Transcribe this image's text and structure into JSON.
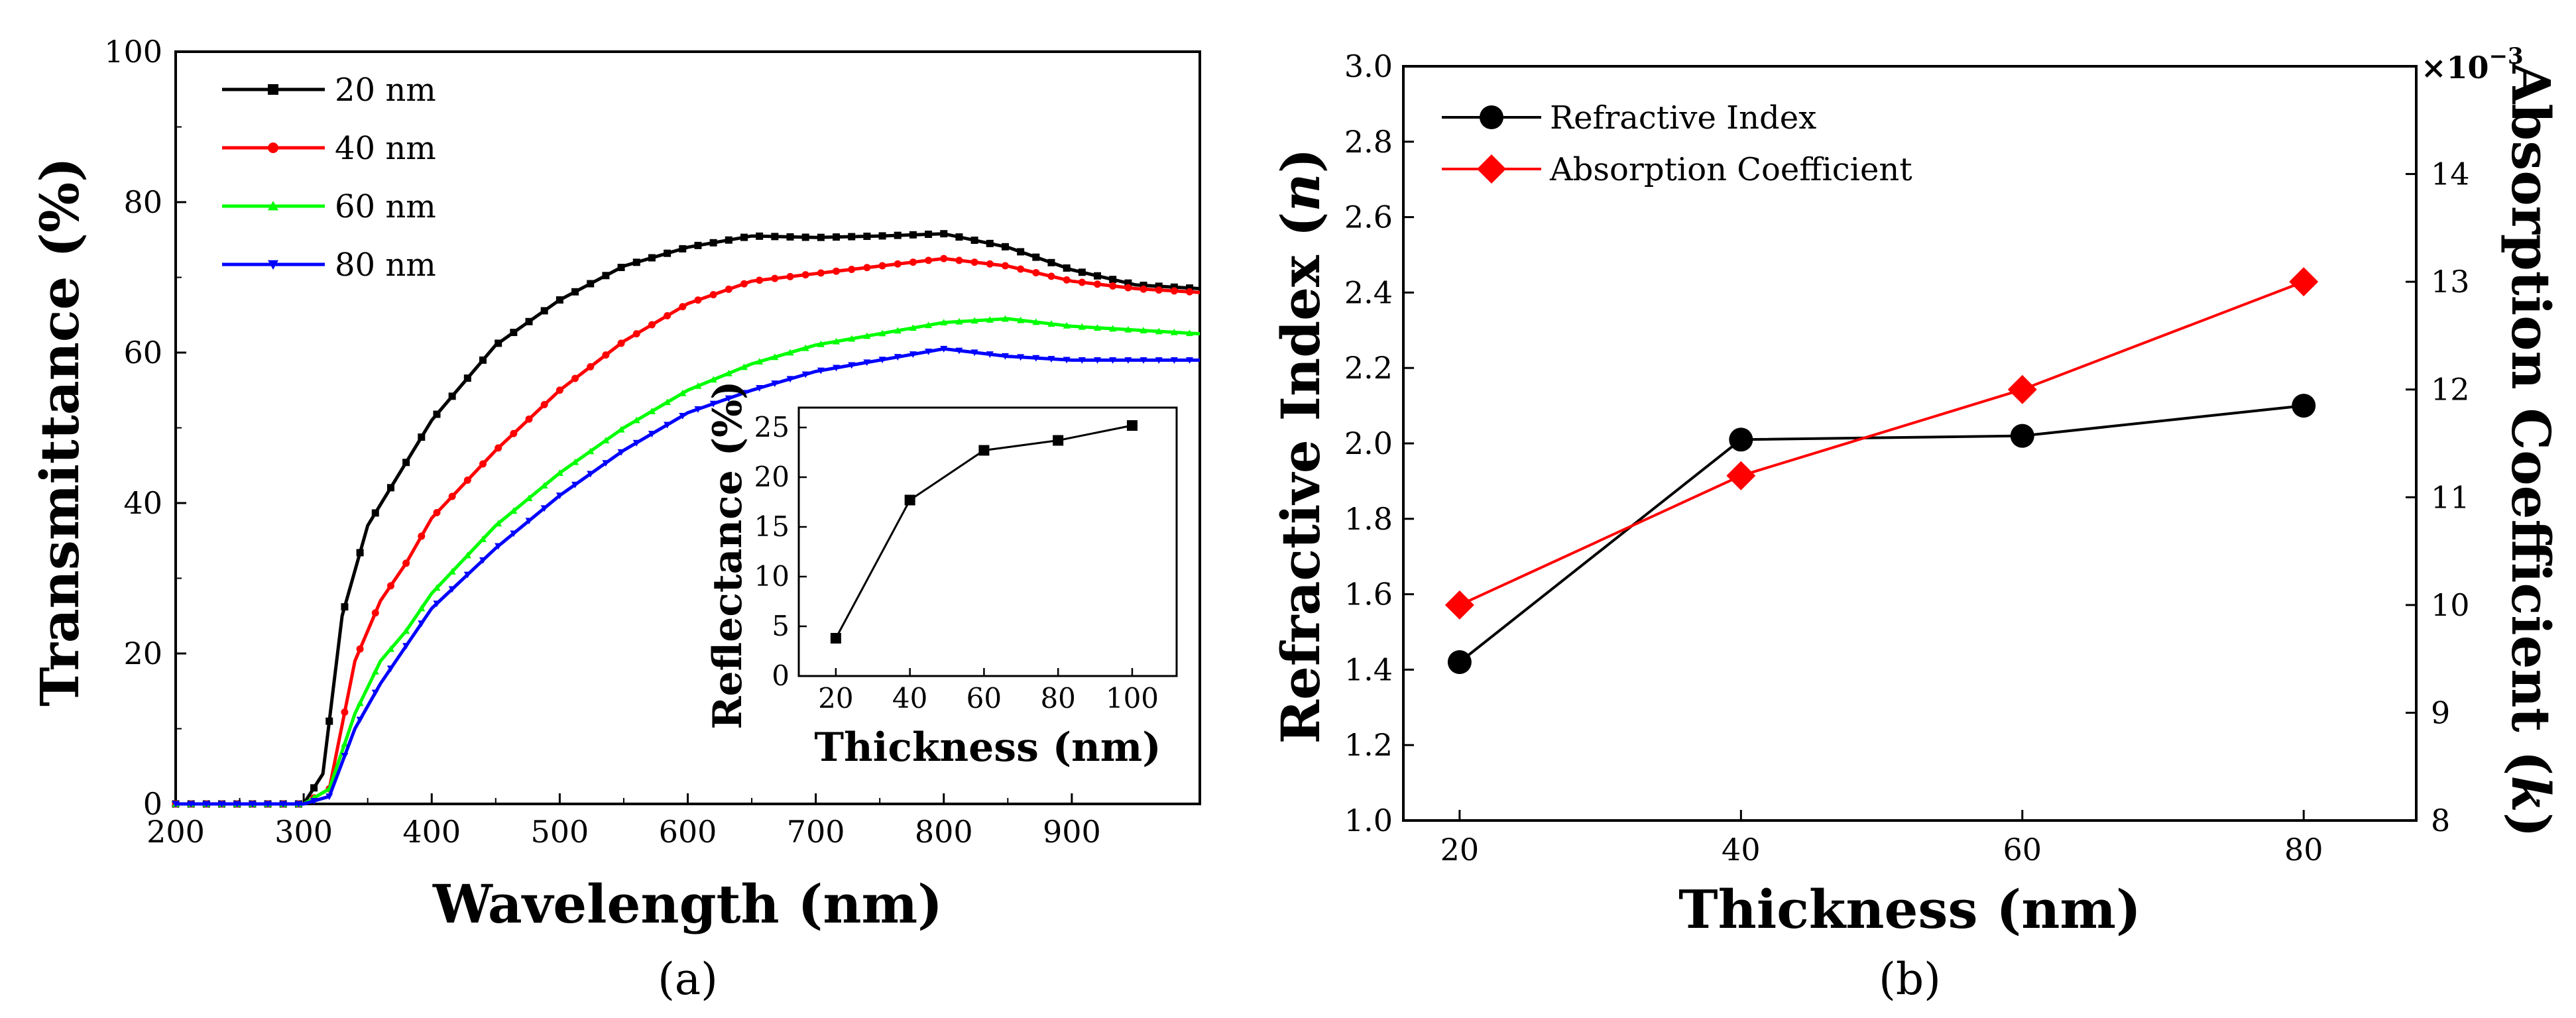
{
  "chart_data": [
    {
      "id": "a",
      "type": "line",
      "panel_label": "(a)",
      "xlabel": "Wavelength (nm)",
      "ylabel": "Transmittance (%)",
      "xlim": [
        200,
        1000
      ],
      "ylim": [
        0,
        100
      ],
      "xticks": [
        200,
        300,
        400,
        500,
        600,
        700,
        800,
        900
      ],
      "yticks": [
        0,
        20,
        40,
        60,
        80,
        100
      ],
      "legend_position": "top-left",
      "series": [
        {
          "name": "20 nm",
          "color": "#000000",
          "marker": "square",
          "x": [
            200,
            300,
            315,
            330,
            350,
            375,
            400,
            450,
            500,
            550,
            600,
            650,
            700,
            750,
            800,
            850,
            900,
            950,
            1000
          ],
          "y": [
            0,
            0,
            4,
            25,
            37,
            44,
            51,
            61,
            67,
            71.5,
            74,
            75.5,
            75.3,
            75.5,
            75.8,
            74,
            71,
            69,
            68.5
          ]
        },
        {
          "name": "40 nm",
          "color": "#ff0000",
          "marker": "circle",
          "x": [
            200,
            300,
            320,
            340,
            360,
            380,
            400,
            450,
            500,
            550,
            600,
            650,
            700,
            750,
            800,
            850,
            900,
            950,
            1000
          ],
          "y": [
            0,
            0,
            2,
            19,
            27,
            32,
            38,
            47,
            55,
            61.5,
            66.5,
            69.5,
            70.5,
            71.5,
            72.5,
            71.5,
            69.5,
            68.5,
            68
          ]
        },
        {
          "name": "60 nm",
          "color": "#00ff00",
          "marker": "triangle-up",
          "x": [
            200,
            300,
            320,
            340,
            360,
            380,
            400,
            450,
            500,
            550,
            600,
            650,
            700,
            750,
            800,
            850,
            900,
            950,
            1000
          ],
          "y": [
            0,
            0,
            2,
            12,
            19,
            23,
            28,
            37,
            44,
            50,
            55,
            58.5,
            61,
            62.5,
            64,
            64.5,
            63.5,
            63,
            62.5
          ]
        },
        {
          "name": "80 nm",
          "color": "#0000ff",
          "marker": "triangle-down",
          "x": [
            200,
            300,
            320,
            340,
            360,
            380,
            400,
            450,
            500,
            550,
            600,
            650,
            700,
            750,
            800,
            850,
            900,
            950,
            1000
          ],
          "y": [
            0,
            0,
            1,
            10,
            16,
            21,
            26,
            34,
            41,
            47,
            52,
            55,
            57.5,
            59,
            60.5,
            59.5,
            59,
            59,
            59
          ]
        }
      ]
    },
    {
      "id": "a-inset",
      "type": "line",
      "xlabel": "Thickness (nm)",
      "ylabel": "Reflectance (%)",
      "xlim": [
        10,
        112
      ],
      "ylim": [
        0,
        27
      ],
      "xticks": [
        20,
        40,
        60,
        80,
        100
      ],
      "yticks": [
        0,
        5,
        10,
        15,
        20,
        25
      ],
      "series": [
        {
          "name": "Reflectance",
          "color": "#000000",
          "marker": "square",
          "x": [
            20,
            40,
            60,
            80,
            100
          ],
          "y": [
            3.8,
            17.7,
            22.7,
            23.7,
            25.2
          ]
        }
      ]
    },
    {
      "id": "b",
      "type": "line",
      "panel_label": "(b)",
      "xlabel": "Thickness (nm)",
      "ylabel": "Refractive Index (n)",
      "y2label": "Absorption Coefficient (k)",
      "y2_multiplier": "×10",
      "y2_multiplier_exp": "−3",
      "xlim": [
        16,
        88
      ],
      "ylim": [
        1.0,
        3.0
      ],
      "y2lim": [
        8,
        15
      ],
      "xticks": [
        20,
        40,
        60,
        80
      ],
      "yticks": [
        1.0,
        1.2,
        1.4,
        1.6,
        1.8,
        2.0,
        2.2,
        2.4,
        2.6,
        2.8,
        3.0
      ],
      "y2ticks": [
        8,
        9,
        10,
        11,
        12,
        13,
        14
      ],
      "legend_position": "top-left",
      "series": [
        {
          "name": "Refractive Index",
          "axis": "left",
          "color": "#000000",
          "marker": "circle",
          "x": [
            20,
            40,
            60,
            80
          ],
          "y": [
            1.42,
            2.01,
            2.02,
            2.1
          ]
        },
        {
          "name": "Absorption Coefficient",
          "axis": "right",
          "color": "#ff0000",
          "marker": "diamond",
          "x": [
            20,
            40,
            60,
            80
          ],
          "y": [
            10.0,
            11.2,
            12.0,
            13.0
          ]
        }
      ]
    }
  ]
}
